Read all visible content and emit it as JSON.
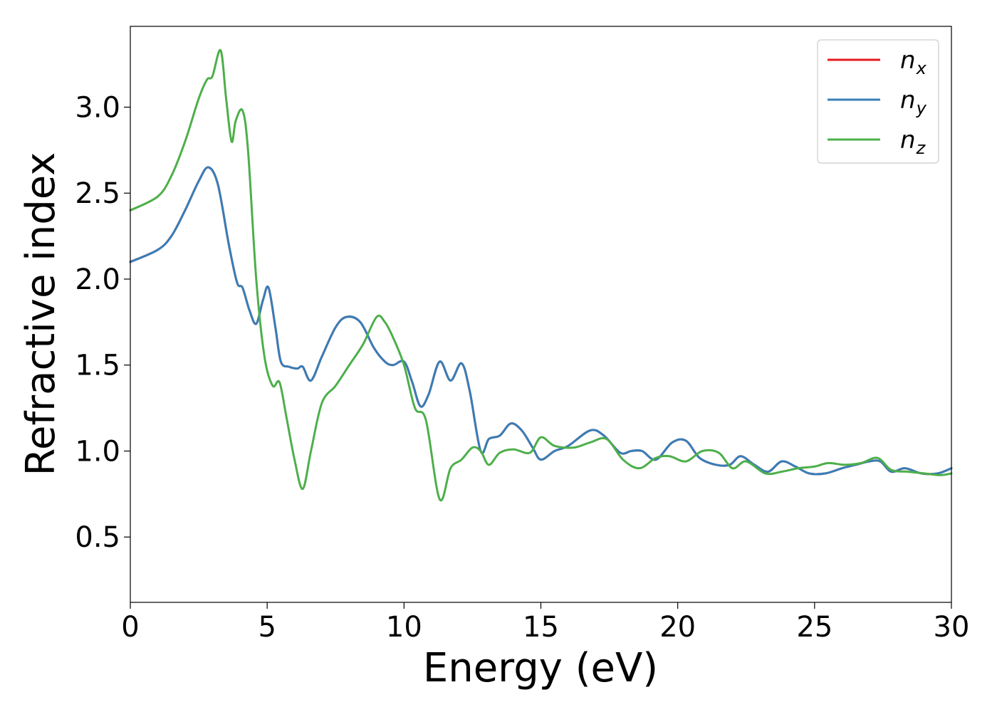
{
  "chart_data": {
    "type": "line",
    "title": "",
    "xlabel": "Energy (eV)",
    "ylabel": "Refractive index",
    "xlim": [
      0,
      30
    ],
    "ylim": [
      0.12,
      3.47
    ],
    "xticks": [
      0,
      5,
      10,
      15,
      20,
      25,
      30
    ],
    "yticks": [
      0.5,
      1.0,
      1.5,
      2.0,
      2.5,
      3.0
    ],
    "xtick_labels": [
      "0",
      "5",
      "10",
      "15",
      "20",
      "25",
      "30"
    ],
    "ytick_labels": [
      "0.5",
      "1.0",
      "1.5",
      "2.0",
      "2.5",
      "3.0"
    ],
    "grid": false,
    "legend_position": "top-right",
    "series": [
      {
        "name": "n_x",
        "label_main": "n",
        "label_sub": "x",
        "color": "#e41a1c",
        "x": [
          0,
          1,
          1.5,
          2,
          2.5,
          2.85,
          3.2,
          3.6,
          3.9,
          4.1,
          4.35,
          4.6,
          4.85,
          5.05,
          5.3,
          5.5,
          5.8,
          6.1,
          6.3,
          6.6,
          7.0,
          7.5,
          7.9,
          8.4,
          8.9,
          9.3,
          9.6,
          10.0,
          10.3,
          10.6,
          10.9,
          11.3,
          11.7,
          12.1,
          12.4,
          12.8,
          13.1,
          13.5,
          13.9,
          14.3,
          14.7,
          15.0,
          15.5,
          16.0,
          16.8,
          17.3,
          17.9,
          18.3,
          18.7,
          19.2,
          19.8,
          20.3,
          20.8,
          21.4,
          21.9,
          22.3,
          22.8,
          23.3,
          23.8,
          24.3,
          24.8,
          25.4,
          26.0,
          26.5,
          27.0,
          27.4,
          27.8,
          28.3,
          28.9,
          29.5,
          30.0
        ],
        "y": [
          2.1,
          2.17,
          2.25,
          2.4,
          2.57,
          2.65,
          2.55,
          2.2,
          1.98,
          1.95,
          1.82,
          1.74,
          1.88,
          1.95,
          1.72,
          1.52,
          1.49,
          1.48,
          1.49,
          1.41,
          1.55,
          1.72,
          1.78,
          1.75,
          1.6,
          1.52,
          1.5,
          1.52,
          1.4,
          1.26,
          1.33,
          1.52,
          1.41,
          1.51,
          1.35,
          1.0,
          1.07,
          1.09,
          1.16,
          1.12,
          1.02,
          0.95,
          1.0,
          1.03,
          1.12,
          1.09,
          0.99,
          1.0,
          1.0,
          0.95,
          1.05,
          1.06,
          0.96,
          0.92,
          0.92,
          0.97,
          0.92,
          0.88,
          0.94,
          0.91,
          0.87,
          0.87,
          0.9,
          0.92,
          0.94,
          0.94,
          0.88,
          0.9,
          0.87,
          0.87,
          0.9
        ]
      },
      {
        "name": "n_y",
        "label_main": "n",
        "label_sub": "y",
        "color": "#377eb8",
        "x": [
          0,
          1,
          1.5,
          2,
          2.5,
          2.85,
          3.2,
          3.6,
          3.9,
          4.1,
          4.35,
          4.6,
          4.85,
          5.05,
          5.3,
          5.5,
          5.8,
          6.1,
          6.3,
          6.6,
          7.0,
          7.5,
          7.9,
          8.4,
          8.9,
          9.3,
          9.6,
          10.0,
          10.3,
          10.6,
          10.9,
          11.3,
          11.7,
          12.1,
          12.4,
          12.8,
          13.1,
          13.5,
          13.9,
          14.3,
          14.7,
          15.0,
          15.5,
          16.0,
          16.8,
          17.3,
          17.9,
          18.3,
          18.7,
          19.2,
          19.8,
          20.3,
          20.8,
          21.4,
          21.9,
          22.3,
          22.8,
          23.3,
          23.8,
          24.3,
          24.8,
          25.4,
          26.0,
          26.5,
          27.0,
          27.4,
          27.8,
          28.3,
          28.9,
          29.5,
          30.0
        ],
        "y": [
          2.1,
          2.17,
          2.25,
          2.4,
          2.57,
          2.65,
          2.55,
          2.2,
          1.98,
          1.95,
          1.82,
          1.74,
          1.88,
          1.95,
          1.72,
          1.52,
          1.49,
          1.48,
          1.49,
          1.41,
          1.55,
          1.72,
          1.78,
          1.75,
          1.6,
          1.52,
          1.5,
          1.52,
          1.4,
          1.26,
          1.33,
          1.52,
          1.41,
          1.51,
          1.35,
          1.0,
          1.07,
          1.09,
          1.16,
          1.12,
          1.02,
          0.95,
          1.0,
          1.03,
          1.12,
          1.09,
          0.99,
          1.0,
          1.0,
          0.95,
          1.05,
          1.06,
          0.96,
          0.92,
          0.92,
          0.97,
          0.92,
          0.88,
          0.94,
          0.91,
          0.87,
          0.87,
          0.9,
          0.92,
          0.94,
          0.94,
          0.88,
          0.9,
          0.87,
          0.87,
          0.9
        ]
      },
      {
        "name": "n_z",
        "label_main": "n",
        "label_sub": "z",
        "color": "#4daf4a",
        "x": [
          0,
          1,
          1.5,
          2,
          2.5,
          2.8,
          3.0,
          3.3,
          3.5,
          3.7,
          3.85,
          4.1,
          4.3,
          4.6,
          4.9,
          5.2,
          5.45,
          5.7,
          6.0,
          6.3,
          6.6,
          7.0,
          7.5,
          8.0,
          8.5,
          9.0,
          9.3,
          9.6,
          10.0,
          10.4,
          10.8,
          11.3,
          11.7,
          12.1,
          12.5,
          12.8,
          13.1,
          13.5,
          14.0,
          14.6,
          15.0,
          15.5,
          16.2,
          16.8,
          17.4,
          18.0,
          18.6,
          19.2,
          19.7,
          20.3,
          20.9,
          21.5,
          22.0,
          22.5,
          23.2,
          23.8,
          24.4,
          25.0,
          25.5,
          26.1,
          26.7,
          27.3,
          27.8,
          28.4,
          29.0,
          29.6,
          30.0
        ],
        "y": [
          2.4,
          2.48,
          2.6,
          2.8,
          3.05,
          3.16,
          3.18,
          3.33,
          3.05,
          2.8,
          2.92,
          2.98,
          2.75,
          2.0,
          1.55,
          1.38,
          1.4,
          1.2,
          0.95,
          0.78,
          1.0,
          1.28,
          1.38,
          1.5,
          1.62,
          1.78,
          1.75,
          1.66,
          1.5,
          1.25,
          1.18,
          0.72,
          0.9,
          0.95,
          1.02,
          1.0,
          0.92,
          0.99,
          1.01,
          0.99,
          1.08,
          1.03,
          1.02,
          1.05,
          1.07,
          0.95,
          0.9,
          0.96,
          0.97,
          0.94,
          1.0,
          0.99,
          0.9,
          0.94,
          0.87,
          0.88,
          0.9,
          0.91,
          0.93,
          0.92,
          0.93,
          0.96,
          0.89,
          0.88,
          0.87,
          0.86,
          0.87
        ]
      }
    ]
  }
}
